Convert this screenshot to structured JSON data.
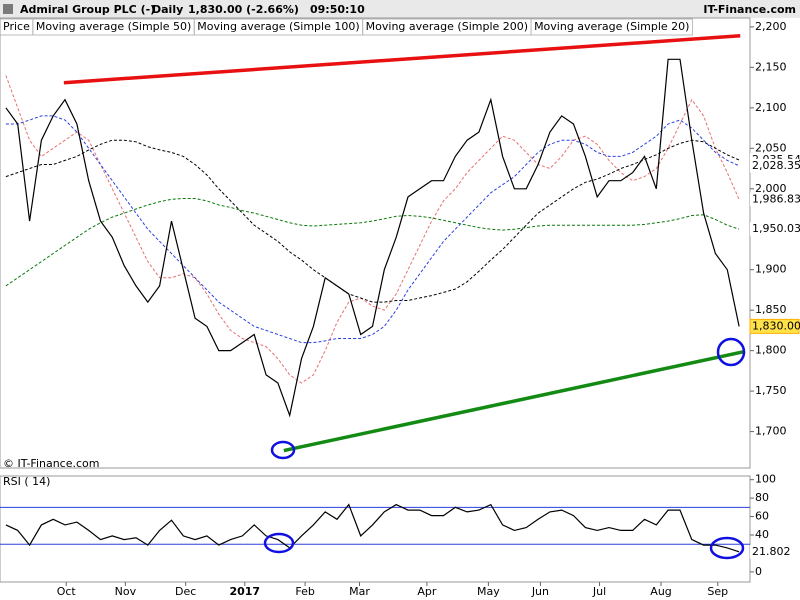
{
  "header": {
    "name": "Admiral Group PLC (-)",
    "period": "Daily",
    "quote": "1,830.00 (-2.66%)",
    "time": "09:50:10",
    "brand": "IT-Finance.com",
    "watermark": "© IT-Finance.com"
  },
  "chart_data": [
    {
      "type": "line",
      "grid": false,
      "categories": [
        null,
        null,
        null,
        null,
        null,
        null,
        null,
        null,
        null,
        null,
        null,
        null,
        null,
        null,
        null,
        null,
        null,
        null,
        null,
        null,
        null,
        null,
        null,
        null,
        null,
        null,
        null,
        null,
        null,
        null,
        null,
        null,
        null,
        null,
        null,
        null,
        null,
        null,
        null,
        null,
        null,
        null,
        null,
        null,
        null,
        null,
        null,
        null,
        null,
        null,
        null,
        null,
        null,
        null,
        null,
        null,
        null,
        null,
        null,
        null,
        null,
        null,
        null
      ],
      "ylim": [
        1655,
        2211
      ],
      "yticks": [
        {
          "value": 1700,
          "label": "1,700"
        },
        {
          "value": 1750,
          "label": "1,750"
        },
        {
          "value": 1800,
          "label": "1,800"
        },
        {
          "value": 1850,
          "label": "1,850"
        },
        {
          "value": 1900,
          "label": "1,900"
        },
        {
          "value": 1950,
          "label": "1,950"
        },
        {
          "value": 2000,
          "label": "2,000"
        },
        {
          "value": 2050,
          "label": "2,050"
        },
        {
          "value": 2100,
          "label": "2,100"
        },
        {
          "value": 2150,
          "label": "2,150"
        },
        {
          "value": 2200,
          "label": "2,200"
        }
      ],
      "series": [
        {
          "name": "Price",
          "color": "#000000",
          "dash": false,
          "end_label": {
            "value": 1830,
            "label": "1,830.00"
          },
          "values": [
            2100,
            2080,
            1960,
            2060,
            2090,
            2110,
            2080,
            2010,
            1960,
            1940,
            1905,
            1880,
            1860,
            1880,
            1960,
            1900,
            1840,
            1830,
            1800,
            1800,
            1810,
            1820,
            1770,
            1760,
            1720,
            1790,
            1830,
            1890,
            1880,
            1870,
            1820,
            1830,
            1900,
            1940,
            1990,
            2000,
            2010,
            2010,
            2040,
            2060,
            2070,
            2110,
            2040,
            2000,
            2000,
            2030,
            2070,
            2090,
            2080,
            2040,
            1990,
            2010,
            2010,
            2020,
            2040,
            2000,
            2160,
            2160,
            2060,
            1970,
            1920,
            1900,
            1830
          ]
        },
        {
          "name": "Moving average (Simple 50)",
          "color": "#2b3fe0",
          "dash": true,
          "end_label": {
            "value": 2028.35,
            "label": "2,028.35"
          },
          "values": [
            2080,
            2080,
            2085,
            2090,
            2090,
            2085,
            2070,
            2050,
            2030,
            2010,
            1990,
            1970,
            1950,
            1935,
            1920,
            1905,
            1890,
            1875,
            1860,
            1850,
            1840,
            1830,
            1825,
            1820,
            1815,
            1810,
            1810,
            1812,
            1815,
            1815,
            1815,
            1820,
            1830,
            1850,
            1875,
            1895,
            1915,
            1935,
            1950,
            1965,
            1980,
            1995,
            2005,
            2015,
            2030,
            2045,
            2055,
            2060,
            2060,
            2055,
            2045,
            2040,
            2040,
            2045,
            2055,
            2065,
            2080,
            2085,
            2075,
            2060,
            2045,
            2035,
            2028.35
          ]
        },
        {
          "name": "Moving average (Simple 100)",
          "color": "#000000",
          "dash": true,
          "end_label": {
            "value": 2035.54,
            "label": "2,035.54"
          },
          "values": [
            2015,
            2020,
            2025,
            2030,
            2030,
            2035,
            2040,
            2048,
            2055,
            2060,
            2060,
            2058,
            2052,
            2048,
            2045,
            2040,
            2030,
            2017,
            2000,
            1985,
            1970,
            1955,
            1945,
            1935,
            1922,
            1912,
            1900,
            1890,
            1880,
            1870,
            1865,
            1860,
            1860,
            1862,
            1862,
            1865,
            1868,
            1872,
            1876,
            1885,
            1898,
            1912,
            1925,
            1940,
            1955,
            1970,
            1980,
            1990,
            2000,
            2008,
            2012,
            2018,
            2025,
            2030,
            2036,
            2042,
            2050,
            2056,
            2060,
            2058,
            2050,
            2042,
            2035.54
          ]
        },
        {
          "name": "Moving average (Simple 200)",
          "color": "#0a7a0a",
          "dash": true,
          "end_label": {
            "value": 1950.03,
            "label": "1,950.03"
          },
          "values": [
            1880,
            1890,
            1900,
            1910,
            1920,
            1930,
            1940,
            1950,
            1958,
            1965,
            1970,
            1975,
            1980,
            1984,
            1987,
            1988,
            1988,
            1985,
            1980,
            1977,
            1973,
            1970,
            1966,
            1962,
            1958,
            1955,
            1954,
            1955,
            1956,
            1957,
            1958,
            1960,
            1963,
            1966,
            1967,
            1966,
            1964,
            1961,
            1958,
            1955,
            1952,
            1950,
            1949,
            1950,
            1952,
            1954,
            1955,
            1955,
            1955,
            1955,
            1955,
            1955,
            1955,
            1955,
            1956,
            1958,
            1960,
            1963,
            1967,
            1968,
            1962,
            1955,
            1950.03
          ]
        },
        {
          "name": "Moving average (Simple 20)",
          "color": "#e87070",
          "dash": true,
          "end_label": {
            "value": 1986.83,
            "label": "1,986.83"
          },
          "values": [
            2140,
            2100,
            2060,
            2040,
            2050,
            2060,
            2070,
            2060,
            2030,
            2000,
            1970,
            1940,
            1910,
            1890,
            1890,
            1895,
            1890,
            1870,
            1845,
            1825,
            1815,
            1810,
            1805,
            1790,
            1770,
            1760,
            1770,
            1800,
            1835,
            1860,
            1865,
            1855,
            1850,
            1870,
            1900,
            1930,
            1960,
            1985,
            2000,
            2020,
            2035,
            2050,
            2065,
            2060,
            2045,
            2030,
            2025,
            2040,
            2060,
            2065,
            2055,
            2035,
            2020,
            2010,
            2015,
            2025,
            2050,
            2080,
            2110,
            2090,
            2050,
            2020,
            1986.83
          ]
        }
      ],
      "trendlines": [
        {
          "color": "#e81010",
          "points": [
            [
              4.9,
              2131
            ],
            [
              62.1,
              2189
            ]
          ]
        },
        {
          "color": "#138a13",
          "points": [
            [
              23.5,
              1676.5
            ],
            [
              62.5,
              1799
            ]
          ]
        }
      ]
    },
    {
      "type": "line",
      "title": "RSI ( 14)",
      "categories": [
        null,
        null,
        null,
        null,
        null,
        null,
        null,
        null,
        null,
        null,
        null,
        null,
        null,
        null,
        null,
        null,
        null,
        null,
        null,
        null,
        null,
        null,
        null,
        null,
        null,
        null,
        null,
        null,
        null,
        null,
        null,
        null,
        null,
        null,
        null,
        null,
        null,
        null,
        null,
        null,
        null,
        null,
        null,
        null,
        null,
        null,
        null,
        null,
        null,
        null,
        null,
        null,
        null,
        null,
        null,
        null,
        null,
        null,
        null,
        null,
        null,
        null,
        null
      ],
      "ylim": [
        -11,
        104
      ],
      "yticks": [
        0,
        20,
        40,
        60,
        80,
        100
      ],
      "hlines": [
        30,
        70
      ],
      "hline_color": "#2b3fe0",
      "xticks": [
        {
          "value": 5.1,
          "label": "Oct"
        },
        {
          "value": 10.1,
          "label": "Nov"
        },
        {
          "value": 15.2,
          "label": "Dec"
        },
        {
          "value": 20.2,
          "label": "2017"
        },
        {
          "value": 25.3,
          "label": "Feb"
        },
        {
          "value": 29.9,
          "label": "Mar"
        },
        {
          "value": 35.6,
          "label": "Apr"
        },
        {
          "value": 40.8,
          "label": "May"
        },
        {
          "value": 45.2,
          "label": "Jun"
        },
        {
          "value": 50.2,
          "label": "Jul"
        },
        {
          "value": 55.4,
          "label": "Aug"
        },
        {
          "value": 60.2,
          "label": "Sep"
        }
      ],
      "series": [
        {
          "name": "RSI",
          "color": "#000000",
          "dash": false,
          "end_label": {
            "value": 21.802,
            "label": "21.802"
          },
          "values": [
            51,
            45,
            29,
            51,
            57,
            51,
            54,
            45,
            35,
            39,
            35,
            37,
            29,
            45,
            56,
            39,
            35,
            39,
            29,
            35,
            39,
            51,
            39,
            35,
            26,
            39,
            51,
            65,
            57,
            73,
            39,
            51,
            65,
            73,
            67,
            67,
            61,
            61,
            70,
            65,
            67,
            73,
            51,
            45,
            48,
            57,
            65,
            67,
            61,
            48,
            45,
            48,
            45,
            45,
            57,
            51,
            67,
            67,
            35,
            29,
            29,
            26,
            21.802
          ]
        }
      ]
    }
  ]
}
